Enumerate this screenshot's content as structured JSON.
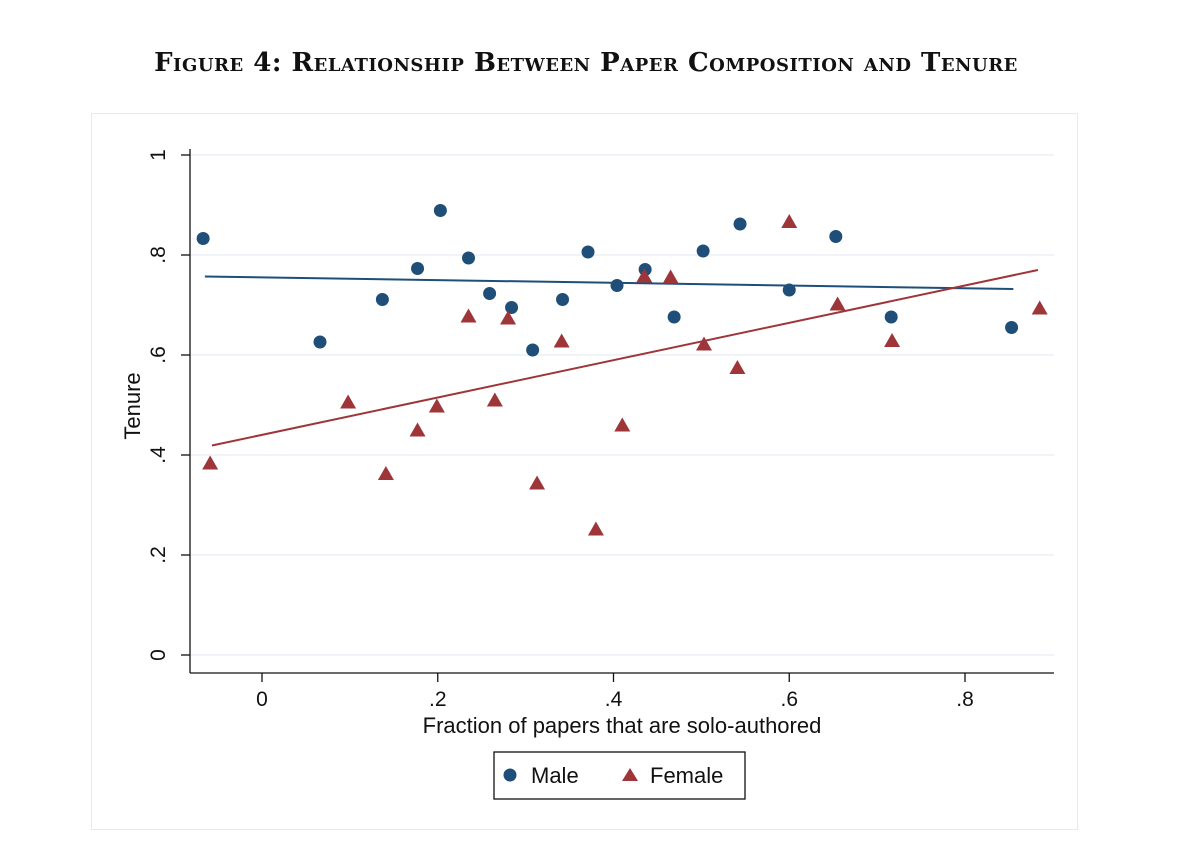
{
  "figure": {
    "title": "Figure 4: Relationship Between Paper Composition and Tenure"
  },
  "chart_data": {
    "type": "scatter",
    "title": "Figure 4: Relationship Between Paper Composition and Tenure",
    "xlabel": "Fraction of papers that are solo-authored",
    "ylabel": "Tenure",
    "xlim": [
      -0.08,
      0.89
    ],
    "ylim": [
      0,
      1
    ],
    "xticks": [
      0,
      0.2,
      0.4,
      0.6,
      0.8
    ],
    "xtick_labels": [
      "0",
      ".2",
      ".4",
      ".6",
      ".8"
    ],
    "yticks": [
      0,
      0.2,
      0.4,
      0.6,
      0.8,
      1
    ],
    "ytick_labels": [
      "0",
      ".2",
      ".4",
      ".6",
      ".8",
      "1"
    ],
    "grid": "horizontal",
    "legend_position": "bottom",
    "series": [
      {
        "name": "Male",
        "marker": "circle",
        "color": "#1f4e79",
        "points": [
          [
            -0.067,
            0.833
          ],
          [
            0.066,
            0.626
          ],
          [
            0.137,
            0.711
          ],
          [
            0.177,
            0.773
          ],
          [
            0.203,
            0.889
          ],
          [
            0.235,
            0.794
          ],
          [
            0.259,
            0.723
          ],
          [
            0.284,
            0.695
          ],
          [
            0.308,
            0.61
          ],
          [
            0.342,
            0.711
          ],
          [
            0.371,
            0.806
          ],
          [
            0.404,
            0.739
          ],
          [
            0.436,
            0.771
          ],
          [
            0.469,
            0.676
          ],
          [
            0.502,
            0.808
          ],
          [
            0.544,
            0.862
          ],
          [
            0.6,
            0.73
          ],
          [
            0.653,
            0.837
          ],
          [
            0.716,
            0.676
          ],
          [
            0.853,
            0.655
          ]
        ],
        "fit_line": [
          [
            -0.065,
            0.757
          ],
          [
            0.855,
            0.732
          ]
        ]
      },
      {
        "name": "Female",
        "marker": "triangle",
        "color": "#9e3539",
        "points": [
          [
            -0.059,
            0.383
          ],
          [
            0.098,
            0.505
          ],
          [
            0.141,
            0.362
          ],
          [
            0.177,
            0.449
          ],
          [
            0.199,
            0.497
          ],
          [
            0.235,
            0.677
          ],
          [
            0.265,
            0.509
          ],
          [
            0.28,
            0.673
          ],
          [
            0.313,
            0.343
          ],
          [
            0.341,
            0.627
          ],
          [
            0.38,
            0.251
          ],
          [
            0.41,
            0.459
          ],
          [
            0.435,
            0.757
          ],
          [
            0.465,
            0.755
          ],
          [
            0.503,
            0.621
          ],
          [
            0.541,
            0.574
          ],
          [
            0.6,
            0.866
          ],
          [
            0.655,
            0.701
          ],
          [
            0.717,
            0.628
          ],
          [
            0.885,
            0.693
          ]
        ],
        "fit_line": [
          [
            -0.057,
            0.419
          ],
          [
            0.883,
            0.77
          ]
        ]
      }
    ]
  }
}
